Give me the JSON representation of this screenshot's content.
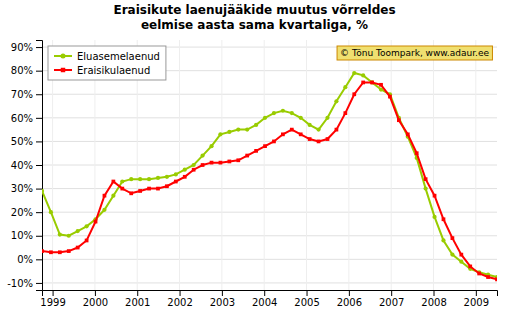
{
  "chart_data": {
    "type": "line",
    "title": "Eraisikute laenujääkide muutus võrreldes\neelmise aasta sama kvartaliga, %",
    "x": [
      1998.75,
      1998.9608,
      1999.1716,
      1999.3824,
      1999.5931,
      1999.8039,
      2000.0147,
      2000.2255,
      2000.4363,
      2000.6471,
      2000.8578,
      2001.0686,
      2001.2794,
      2001.4902,
      2001.701,
      2001.9118,
      2002.1225,
      2002.3333,
      2002.5441,
      2002.7549,
      2002.9657,
      2003.1765,
      2003.3873,
      2003.598,
      2003.8088,
      2004.0196,
      2004.2304,
      2004.4412,
      2004.652,
      2004.8627,
      2005.0735,
      2005.2843,
      2005.4951,
      2005.7059,
      2005.9167,
      2006.1275,
      2006.3382,
      2006.549,
      2006.7598,
      2006.9706,
      2007.1814,
      2007.3922,
      2007.6029,
      2007.8137,
      2008.0245,
      2008.2353,
      2008.4461,
      2008.6569,
      2008.8676,
      2009.0784,
      2009.2892,
      2009.5
    ],
    "series": [
      {
        "name": "Eluasemelaenud",
        "color": "#99cc00",
        "marker": "circle",
        "values": [
          29.0,
          20.0,
          10.5,
          10.0,
          12.0,
          14.0,
          17.0,
          21.0,
          27.0,
          33.0,
          34.0,
          34.0,
          34.0,
          34.5,
          35.0,
          36.0,
          38.0,
          40.0,
          44.0,
          48.0,
          53.0,
          54.0,
          55.0,
          55.0,
          57.0,
          60.0,
          62.0,
          63.0,
          62.0,
          60.0,
          57.0,
          55.0,
          60.0,
          67.0,
          73.0,
          79.0,
          78.0,
          75.0,
          72.0,
          70.0,
          60.0,
          52.0,
          43.0,
          30.0,
          18.0,
          8.0,
          2.0,
          -1.0,
          -4.0,
          -5.5,
          -6.5,
          -7.5
        ]
      },
      {
        "name": "Eraisikulaenud",
        "color": "#ff0000",
        "marker": "square",
        "values": [
          3.5,
          3.0,
          3.0,
          3.5,
          5.0,
          8.0,
          16.0,
          27.0,
          33.0,
          30.0,
          28.0,
          29.0,
          30.0,
          30.0,
          31.0,
          33.0,
          35.0,
          38.0,
          40.0,
          41.0,
          41.0,
          41.5,
          42.0,
          44.0,
          46.0,
          48.0,
          50.0,
          53.0,
          55.0,
          53.0,
          51.0,
          50.0,
          51.0,
          55.0,
          62.0,
          70.0,
          75.0,
          75.0,
          74.0,
          69.0,
          59.0,
          53.0,
          45.0,
          34.0,
          27.0,
          17.0,
          9.0,
          2.0,
          -3.0,
          -6.0,
          -7.5,
          -8.5
        ]
      }
    ],
    "xlim": [
      1998.75,
      2009.5
    ],
    "xticks": [
      1999,
      2000,
      2001,
      2002,
      2003,
      2004,
      2005,
      2006,
      2007,
      2008,
      2009
    ],
    "ylim": [
      -13,
      93
    ],
    "yticks": [
      {
        "value": -10,
        "label": "-10%"
      },
      {
        "value": 0,
        "label": "0%"
      },
      {
        "value": 10,
        "label": "10%"
      },
      {
        "value": 20,
        "label": "20%"
      },
      {
        "value": 30,
        "label": "30%"
      },
      {
        "value": 40,
        "label": "40%"
      },
      {
        "value": 50,
        "label": "50%"
      },
      {
        "value": 60,
        "label": "60%"
      },
      {
        "value": 70,
        "label": "70%"
      },
      {
        "value": 80,
        "label": "80%"
      },
      {
        "value": 90,
        "label": "90%"
      }
    ],
    "grid": true,
    "legend": "upper-left",
    "annotations": [
      "© Tõnu Toompark, www.adaur.ee"
    ]
  }
}
